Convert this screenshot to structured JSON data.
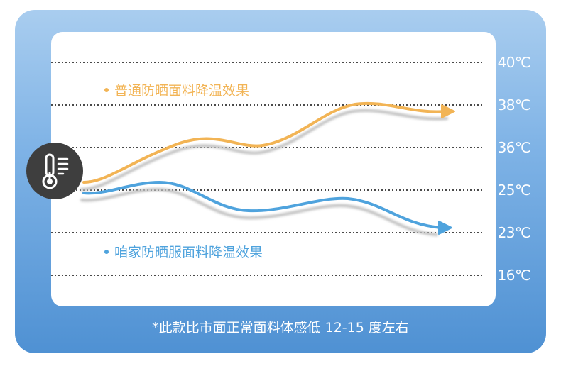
{
  "chart_data": {
    "type": "line",
    "y_ticks": [
      "40℃",
      "38℃",
      "36℃",
      "25℃",
      "23℃",
      "16℃"
    ],
    "series": [
      {
        "name": "普通防晒面料降温效果",
        "color": "#f2b455",
        "trend": "rising"
      },
      {
        "name": "咱家防晒服面料降温效果",
        "color": "#4fa3dd",
        "trend": "falling"
      }
    ],
    "grid": "dotted horizontal lines",
    "footnote": "*此款比市面正常面料体感低 12-15 度左右"
  },
  "icons": {
    "thermometer": "thermometer-icon"
  },
  "colors": {
    "frame_top": "#a9cdef",
    "frame_bottom": "#4f91d3",
    "panel": "#ffffff",
    "icon_bg": "#3e3e3e"
  }
}
